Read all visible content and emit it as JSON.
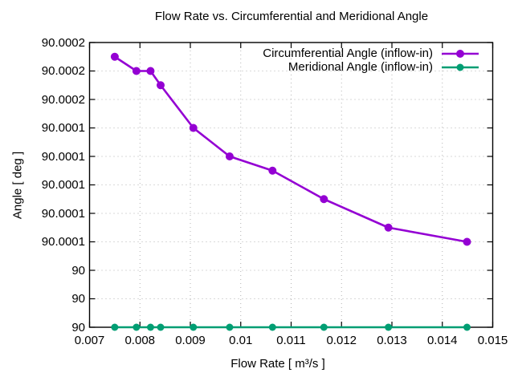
{
  "chart_data": {
    "type": "line",
    "title": "Flow Rate vs. Circumferential and Meridional Angle",
    "xlabel": "Flow Rate [ m³/s ]",
    "ylabel": "Angle [ deg ]",
    "xlim": [
      0.007,
      0.015
    ],
    "ylim": [
      90.0,
      90.0002
    ],
    "grid": true,
    "legend_position": "top-right-inside",
    "x_ticks": [
      {
        "v": 0.007,
        "label": "0.007"
      },
      {
        "v": 0.008,
        "label": "0.008"
      },
      {
        "v": 0.009,
        "label": "0.009"
      },
      {
        "v": 0.01,
        "label": "0.01"
      },
      {
        "v": 0.011,
        "label": "0.011"
      },
      {
        "v": 0.012,
        "label": "0.012"
      },
      {
        "v": 0.013,
        "label": "0.013"
      },
      {
        "v": 0.014,
        "label": "0.014"
      },
      {
        "v": 0.015,
        "label": "0.015"
      }
    ],
    "y_ticks": [
      {
        "v": 90.0,
        "label": "90"
      },
      {
        "v": 90.00002,
        "label": "90"
      },
      {
        "v": 90.00004,
        "label": "90"
      },
      {
        "v": 90.00006,
        "label": "90.0001"
      },
      {
        "v": 90.00008,
        "label": "90.0001"
      },
      {
        "v": 90.0001,
        "label": "90.0001"
      },
      {
        "v": 90.00012,
        "label": "90.0001"
      },
      {
        "v": 90.00014,
        "label": "90.0001"
      },
      {
        "v": 90.00016,
        "label": "90.0002"
      },
      {
        "v": 90.00018,
        "label": "90.0002"
      },
      {
        "v": 90.0002,
        "label": "90.0002"
      }
    ],
    "series": [
      {
        "name": "Circumferential Angle (inflow-in)",
        "color": "#9400d3",
        "x": [
          0.0075,
          0.00793,
          0.00821,
          0.00841,
          0.00906,
          0.00978,
          0.01063,
          0.01165,
          0.01293,
          0.01449
        ],
        "y": [
          90.00019,
          90.00018,
          90.00018,
          90.00017,
          90.00014,
          90.00012,
          90.00011,
          90.00009,
          90.00007,
          90.00006
        ]
      },
      {
        "name": "Meridional Angle (inflow-in)",
        "color": "#009e73",
        "x": [
          0.0075,
          0.00793,
          0.00821,
          0.00841,
          0.00906,
          0.00978,
          0.01063,
          0.01165,
          0.01293,
          0.01449
        ],
        "y": [
          90.0,
          90.0,
          90.0,
          90.0,
          90.0,
          90.0,
          90.0,
          90.0,
          90.0,
          90.0
        ]
      }
    ]
  }
}
